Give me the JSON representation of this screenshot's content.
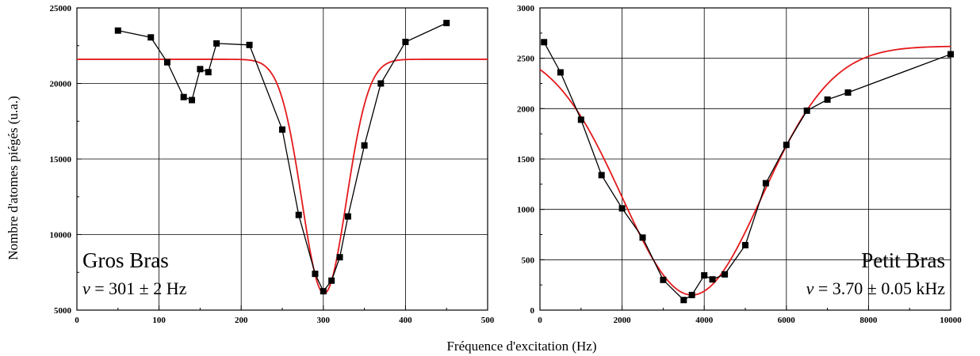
{
  "figure": {
    "ylabel": "Nombre d'atomes piégés (u.a.)",
    "xlabel": "Fréquence d'excitation (Hz)"
  },
  "chart_data": [
    {
      "type": "scatter",
      "panel_label": "Gros Bras",
      "formula": {
        "symbol": "ν",
        "text": " = 301 ± 2 Hz"
      },
      "label_position": "bottom-left",
      "xlim": [
        0,
        500
      ],
      "ylim": [
        5000,
        25000
      ],
      "xticks": [
        0,
        100,
        200,
        300,
        400,
        500
      ],
      "yticks": [
        5000,
        10000,
        15000,
        20000,
        25000
      ],
      "xtick_labels": [
        "0",
        "100",
        "200",
        "300",
        "400",
        "500"
      ],
      "ytick_labels": [
        "5000",
        "10000",
        "15000",
        "20000",
        "25000"
      ],
      "grid_x": [
        100,
        200,
        300,
        400
      ],
      "grid_y": [
        10000,
        15000,
        20000
      ],
      "series": [
        {
          "kind": "data",
          "color": "#000000",
          "x": [
            50,
            90,
            110,
            130,
            140,
            150,
            160,
            170,
            210,
            250,
            270,
            290,
            300,
            310,
            320,
            330,
            350,
            370,
            400,
            450
          ],
          "y": [
            23500,
            23050,
            21400,
            19100,
            18900,
            20950,
            20750,
            22650,
            22550,
            16950,
            11300,
            7400,
            6250,
            6950,
            8500,
            11200,
            15900,
            20000,
            22750,
            24000
          ]
        },
        {
          "kind": "fit",
          "color": "#e41a1c",
          "model": "gaussian",
          "baseline": 21600,
          "depth": 15500,
          "center": 301,
          "sigma": 27,
          "x_range": [
            0,
            500
          ]
        }
      ]
    },
    {
      "type": "scatter",
      "panel_label": "Petit Bras",
      "formula": {
        "symbol": "ν",
        "text": " = 3.70 ± 0.05 kHz"
      },
      "label_position": "bottom-right",
      "xlim": [
        0,
        10000
      ],
      "ylim": [
        0,
        3000
      ],
      "xticks": [
        0,
        2000,
        4000,
        6000,
        8000,
        10000
      ],
      "yticks": [
        0,
        500,
        1000,
        1500,
        2000,
        2500,
        3000
      ],
      "xtick_labels": [
        "0",
        "2000",
        "4000",
        "6000",
        "8000",
        "10000"
      ],
      "ytick_labels": [
        "0",
        "500",
        "1000",
        "1500",
        "2000",
        "2500",
        "3000"
      ],
      "grid_x": [
        2000,
        4000,
        6000,
        8000
      ],
      "grid_y": [
        500,
        1000,
        1500,
        2000,
        2500
      ],
      "series": [
        {
          "kind": "data",
          "color": "#000000",
          "x": [
            100,
            500,
            1000,
            1500,
            2000,
            2500,
            3000,
            3500,
            3700,
            4000,
            4200,
            4500,
            5000,
            5500,
            6000,
            6500,
            7000,
            7500,
            10000
          ],
          "y": [
            2660,
            2360,
            1890,
            1340,
            1010,
            720,
            300,
            100,
            150,
            345,
            305,
            355,
            645,
            1260,
            1640,
            1980,
            2090,
            2160,
            2540
          ]
        },
        {
          "kind": "fit",
          "color": "#e41a1c",
          "model": "gaussian",
          "baseline": 2620,
          "depth": 2470,
          "center": 3700,
          "sigma": 1700,
          "x_range": [
            0,
            10000
          ]
        }
      ]
    }
  ]
}
